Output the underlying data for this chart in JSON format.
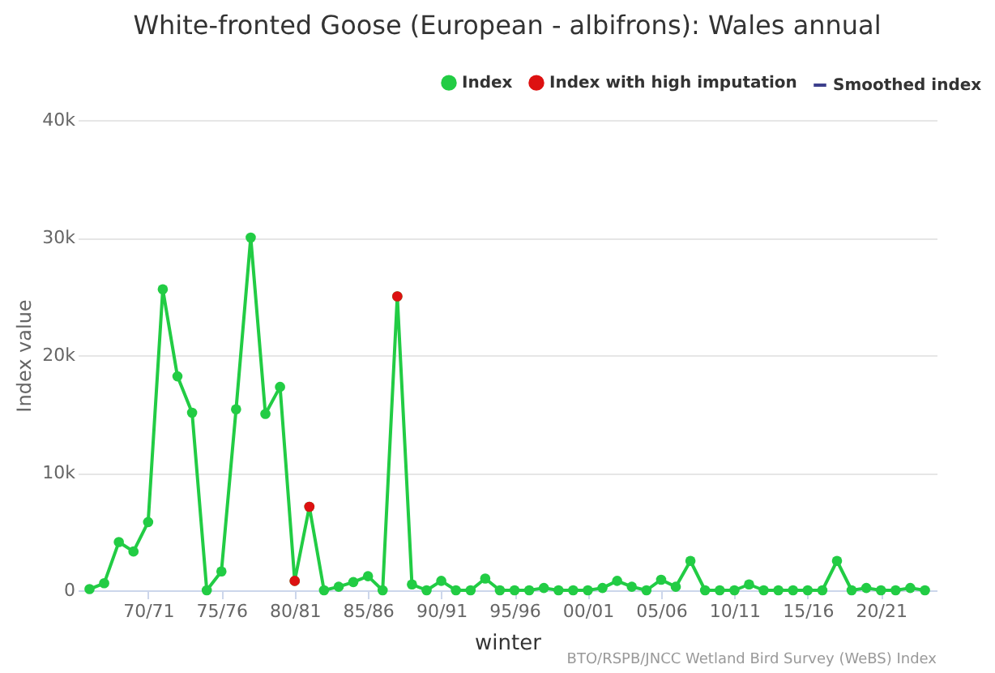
{
  "chart_data": {
    "type": "line",
    "title": "White-fronted Goose (European - albifrons): Wales annual",
    "xlabel": "winter",
    "ylabel": "Index value",
    "categories": [
      null,
      null,
      null,
      null,
      "70/71",
      null,
      null,
      null,
      null,
      "75/76",
      null,
      null,
      null,
      null,
      "80/81",
      null,
      null,
      null,
      null,
      "85/86",
      null,
      null,
      null,
      null,
      "90/91",
      null,
      null,
      null,
      null,
      "95/96",
      null,
      null,
      null,
      null,
      "00/01",
      null,
      null,
      null,
      null,
      "05/06",
      null,
      null,
      null,
      null,
      "10/11",
      null,
      null,
      null,
      null,
      "15/16",
      null,
      null,
      null,
      null,
      "20/21",
      null,
      null,
      null
    ],
    "series": [
      {
        "name": "Index",
        "color": "#22cc44",
        "marker": "circle",
        "values": [
          100,
          600,
          4100,
          3300,
          5800,
          25600,
          18200,
          15100,
          0,
          1600,
          15400,
          30000,
          15000,
          17300,
          800,
          7100,
          0,
          300,
          700,
          1200,
          0,
          25000,
          500,
          0,
          800,
          0,
          0,
          1000,
          0,
          0,
          0,
          200,
          0,
          0,
          0,
          200,
          800,
          300,
          0,
          900,
          300,
          2500,
          0,
          0,
          0,
          500,
          0,
          0,
          0,
          0,
          0,
          2500,
          0,
          200,
          0,
          0,
          200,
          0
        ]
      },
      {
        "name": "Index with high imputation",
        "type": "scatter",
        "color": "#dd1111",
        "marker": "circle",
        "values": [
          null,
          null,
          null,
          null,
          null,
          null,
          null,
          null,
          null,
          null,
          null,
          null,
          null,
          null,
          800,
          7100,
          null,
          null,
          null,
          null,
          null,
          25000,
          null,
          null,
          null,
          null,
          null,
          null,
          null,
          null,
          null,
          null,
          null,
          null,
          null,
          null,
          null,
          null,
          null,
          null,
          null,
          null,
          null,
          null,
          null,
          null,
          null,
          null,
          null,
          null,
          null,
          null,
          null,
          null,
          null,
          null,
          null,
          null
        ]
      },
      {
        "name": "Smoothed index",
        "color": "#3c3f8c",
        "marker": "none",
        "values": [
          null,
          null,
          null,
          null,
          null,
          null,
          null,
          null,
          null,
          null,
          null,
          null,
          null,
          null,
          null,
          null,
          null,
          null,
          null,
          null,
          null,
          null,
          null,
          null,
          null,
          null,
          null,
          null,
          null,
          null,
          null,
          null,
          null,
          null,
          null,
          null,
          null,
          null,
          null,
          null,
          null,
          null,
          null,
          null,
          null,
          null,
          null,
          null,
          null,
          null,
          null,
          null,
          null,
          null,
          null,
          null,
          null,
          null
        ]
      }
    ],
    "ylim": [
      0,
      40000
    ],
    "yticks": [
      0,
      {
        "value": 10000,
        "label": "10k"
      },
      {
        "value": 20000,
        "label": "20k"
      },
      {
        "value": 30000,
        "label": "30k"
      },
      {
        "value": 40000,
        "label": "40k"
      }
    ],
    "grid": "y",
    "legend": "top right",
    "annotations": [
      "BTO/RSPB/JNCC Wetland Bird Survey (WeBS) Index"
    ]
  }
}
